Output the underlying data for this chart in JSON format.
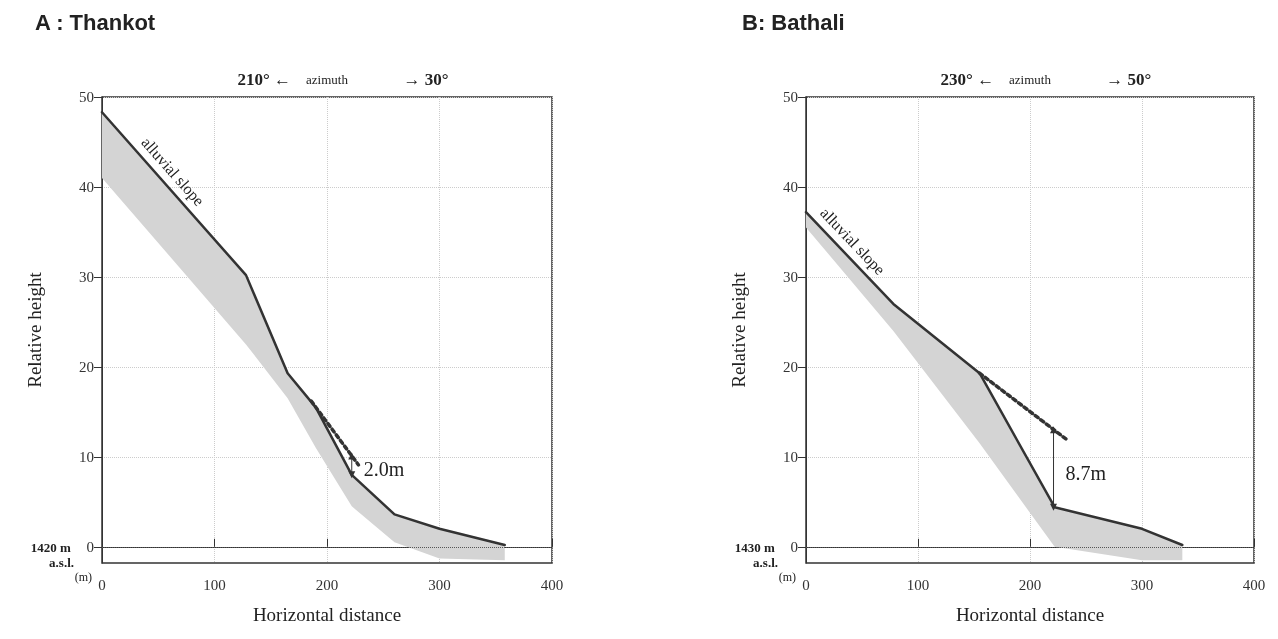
{
  "chart_data": [
    {
      "type": "line",
      "title": "A : Thankot",
      "xlabel": "Horizontal distance",
      "ylabel": "Relative height",
      "xlim": [
        0,
        400
      ],
      "xticks": [
        0,
        100,
        200,
        300,
        400
      ],
      "ylim": [
        -1.8,
        50
      ],
      "yticks": [
        0,
        10,
        20,
        30,
        40,
        50
      ],
      "grid": true,
      "marker": "none",
      "series": [
        {
          "color": "#333333",
          "x": [
            0,
            128,
            165,
            190,
            222,
            260,
            300,
            358
          ],
          "values": [
            48.3,
            30.2,
            19.3,
            15.5,
            8.0,
            3.6,
            2.0,
            0.2
          ],
          "lower": [
            41,
            22.5,
            16.5,
            11,
            4.5,
            0.5,
            -1.3,
            -1.5
          ],
          "upper": [
            48.3,
            30.2,
            19.3,
            15.5,
            8.0,
            3.6,
            2.0,
            0.2
          ]
        },
        {
          "color": "#333333",
          "line_style": "dotted",
          "x": [
            186,
            228
          ],
          "values": [
            16.2,
            9.1
          ]
        },
        {
          "color": "#333333",
          "marker": "triangle",
          "x": [
            222,
            222
          ],
          "values": [
            10.1,
            8.0
          ]
        }
      ],
      "ref_lines": [
        {
          "axis": "y",
          "value": 0,
          "line_style": "dotted",
          "color": "#555555"
        }
      ],
      "annotations": [
        "210° ←",
        "azimuth",
        "→ 30°",
        "1420 m a.s.l.",
        "(m)",
        "alluvial slope",
        "2.0m"
      ]
    },
    {
      "type": "line",
      "title": "B: Bathali",
      "xlabel": "Horizontal distance",
      "ylabel": "Relative height",
      "xlim": [
        0,
        400
      ],
      "xticks": [
        0,
        100,
        200,
        300,
        400
      ],
      "ylim": [
        -1.8,
        50
      ],
      "yticks": [
        0,
        10,
        20,
        30,
        40,
        50
      ],
      "grid": true,
      "marker": "none",
      "series": [
        {
          "color": "#333333",
          "x": [
            0,
            78,
            155,
            222,
            300,
            336
          ],
          "values": [
            37.2,
            27,
            19.3,
            4.4,
            2.0,
            0.2
          ],
          "lower": [
            35.5,
            24,
            11.5,
            0,
            -1.5,
            -1.5
          ],
          "upper": [
            37.2,
            27,
            19.3,
            4.4,
            2.0,
            0.2
          ]
        },
        {
          "color": "#333333",
          "line_style": "dotted",
          "x": [
            155,
            233
          ],
          "values": [
            19.3,
            11.9
          ]
        },
        {
          "color": "#333333",
          "marker": "triangle",
          "x": [
            221,
            221
          ],
          "values": [
            13.0,
            4.4
          ]
        }
      ],
      "ref_lines": [
        {
          "axis": "y",
          "value": 0,
          "line_style": "dotted",
          "color": "#555555"
        }
      ],
      "annotations": [
        "230° ←",
        "azimuth",
        "→ 50°",
        "1430 m a.s.l.",
        "(m)",
        "alluvial slope",
        "8.7m"
      ]
    }
  ]
}
